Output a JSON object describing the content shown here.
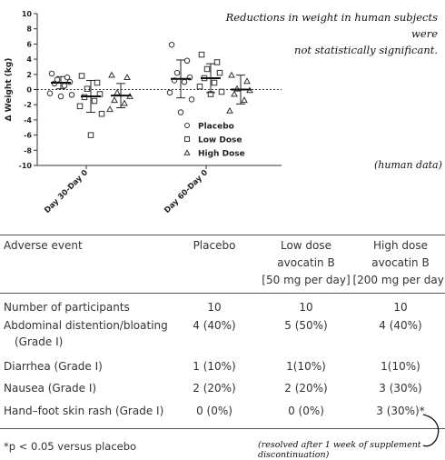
{
  "annotations": {
    "top_note_line1": "Reductions in weight in human subjects were",
    "top_note_line2": "not statistically significant.",
    "human_data": "(human data)",
    "resolved_note": "(resolved after 1 week of supplement discontinuation)"
  },
  "chart_data": {
    "type": "scatter",
    "ylabel": "Δ Weight (kg)",
    "ylim": [
      -10,
      10
    ],
    "yticks": [
      10,
      8,
      6,
      4,
      2,
      0,
      -2,
      -4,
      -6,
      -8,
      -10
    ],
    "categories": [
      "Day 30-Day 0",
      "Day 60-Day 0"
    ],
    "reference_line": 0,
    "legend_position": "lower-right",
    "series": [
      {
        "name": "Placebo",
        "marker": "circle",
        "values": [
          [
            2.1,
            1.6,
            1.3,
            1.0,
            0.8,
            0.5,
            -0.5,
            -0.7,
            -0.9
          ],
          [
            5.9,
            3.8,
            2.2,
            1.6,
            1.2,
            1.0,
            -0.4,
            -1.3,
            -3.0
          ]
        ],
        "mean": [
          0.9,
          1.4
        ],
        "error": [
          0.8,
          2.5
        ]
      },
      {
        "name": "Low Dose",
        "marker": "square",
        "values": [
          [
            1.8,
            0.9,
            0.1,
            -0.6,
            -1.0,
            -1.5,
            -2.2,
            -3.2,
            -6.0
          ],
          [
            4.6,
            3.6,
            2.7,
            2.2,
            1.5,
            0.9,
            0.4,
            -0.3,
            -0.6
          ]
        ],
        "mean": [
          -0.9,
          1.5
        ],
        "error": [
          2.1,
          1.9
        ]
      },
      {
        "name": "High Dose",
        "marker": "triangle",
        "values": [
          [
            1.9,
            1.6,
            -0.4,
            -0.9,
            -1.4,
            -1.8,
            -2.6
          ],
          [
            1.9,
            1.1,
            0.1,
            -0.1,
            -0.6,
            -1.4,
            -2.8
          ]
        ],
        "mean": [
          -0.8,
          0.0
        ],
        "error": [
          1.6,
          1.9
        ]
      }
    ]
  },
  "table": {
    "headers": [
      [
        "Adverse event"
      ],
      [
        "Placebo"
      ],
      [
        "Low dose",
        "avocatin B",
        "[50 mg per day]"
      ],
      [
        "High dose",
        "avocatin B",
        "[200 mg per day]"
      ]
    ],
    "rows": [
      {
        "event": [
          "Number of participants"
        ],
        "placebo": "10",
        "low": "10",
        "high": "10"
      },
      {
        "event": [
          "Abdominal distention/bloating",
          "(Grade I)"
        ],
        "placebo": "4 (40%)",
        "low": "5 (50%)",
        "high": "4 (40%)"
      },
      {
        "event": [
          "Diarrhea (Grade I)"
        ],
        "placebo": "1 (10%)",
        "low": "1(10%)",
        "high": "1(10%)"
      },
      {
        "event": [
          "Nausea (Grade I)"
        ],
        "placebo": "2 (20%)",
        "low": "2 (20%)",
        "high": "3 (30%)"
      },
      {
        "event": [
          "Hand–foot skin rash (Grade I)"
        ],
        "placebo": "0 (0%)",
        "low": "0 (0%)",
        "high": "3 (30%)*"
      }
    ],
    "footnote": "*p < 0.05 versus placebo"
  }
}
